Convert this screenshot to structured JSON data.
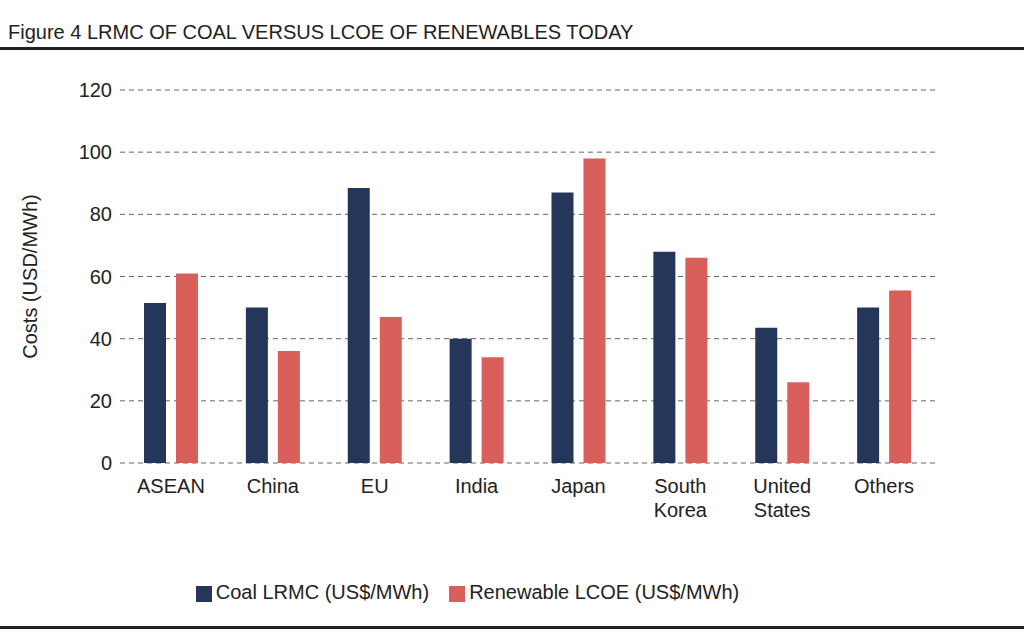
{
  "chart_data": {
    "type": "bar",
    "title": "Figure 4 LRMC OF COAL VERSUS LCOE OF RENEWABLES TODAY",
    "y_label": "Costs (USD/MWh)",
    "categories": [
      "ASEAN",
      "China",
      "EU",
      "India",
      "Japan",
      "South Korea",
      "United States",
      "Others"
    ],
    "series": [
      {
        "name": "Coal LRMC (US$/MWh)",
        "color": "#243659",
        "values": [
          51.5,
          50,
          88.5,
          40,
          87,
          68,
          43.5,
          50
        ]
      },
      {
        "name": "Renewable LCOE (US$/MWh)",
        "color": "#d95f5b",
        "values": [
          61,
          36,
          47,
          34,
          98,
          66,
          26,
          55.5
        ]
      }
    ],
    "ylim": [
      0,
      120
    ],
    "yticks": [
      0,
      20,
      40,
      60,
      80,
      100,
      120
    ],
    "grid": true,
    "legend": "bottom"
  }
}
